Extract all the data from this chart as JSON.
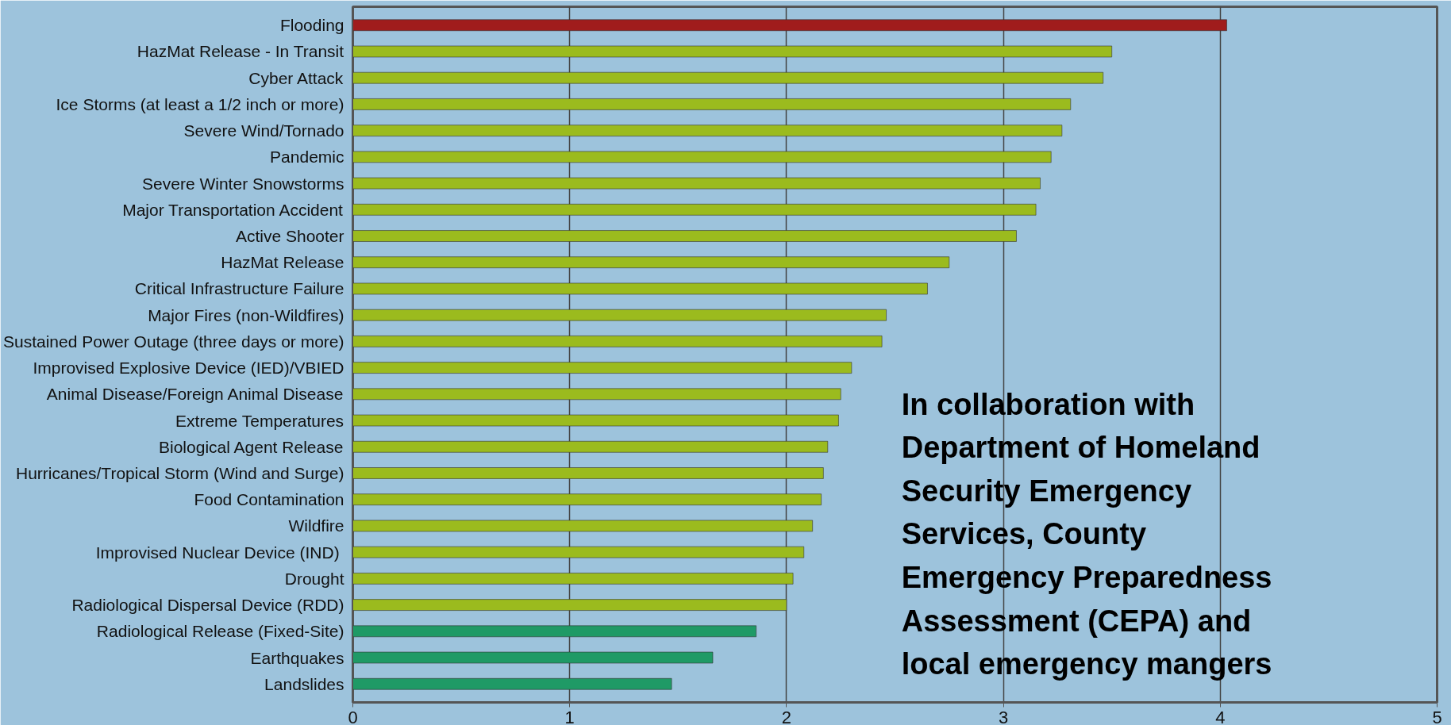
{
  "chart_data": {
    "type": "bar",
    "orientation": "horizontal",
    "categories": [
      "Flooding",
      "HazMat Release - In Transit",
      "Cyber Attack",
      "Ice Storms (at least a 1/2 inch or more)",
      "Severe Wind/Tornado",
      "Pandemic",
      "Severe Winter Snowstorms",
      "Major Transportation Accident",
      "Active Shooter",
      "HazMat Release",
      "Critical Infrastructure Failure",
      "Major Fires (non-Wildfires)",
      "Sustained Power Outage (three days or more)",
      "Improvised Explosive Device (IED)/VBIED",
      "Animal Disease/Foreign Animal Disease",
      "Extreme Temperatures",
      "Biological Agent Release",
      "Hurricanes/Tropical Storm (Wind and Surge)",
      "Food Contamination",
      "Wildfire",
      "Improvised Nuclear Device  (IND)",
      "Drought",
      "Radiological Dispersal Device (RDD)",
      "Radiological Release (Fixed-Site)",
      "Earthquakes",
      "Landslides"
    ],
    "values": [
      4.03,
      3.5,
      3.46,
      3.31,
      3.27,
      3.22,
      3.17,
      3.15,
      3.06,
      2.75,
      2.65,
      2.46,
      2.44,
      2.3,
      2.25,
      2.24,
      2.19,
      2.17,
      2.16,
      2.12,
      2.08,
      2.03,
      2.0,
      1.86,
      1.66,
      1.47
    ],
    "colors": [
      "#a01c1c",
      "#9bbb1e",
      "#9bbb1e",
      "#9bbb1e",
      "#9bbb1e",
      "#9bbb1e",
      "#9bbb1e",
      "#9bbb1e",
      "#9bbb1e",
      "#9bbb1e",
      "#9bbb1e",
      "#9bbb1e",
      "#9bbb1e",
      "#9bbb1e",
      "#9bbb1e",
      "#9bbb1e",
      "#9bbb1e",
      "#9bbb1e",
      "#9bbb1e",
      "#9bbb1e",
      "#9bbb1e",
      "#9bbb1e",
      "#9bbb1e",
      "#1f9a66",
      "#1f9a66",
      "#1f9a66"
    ],
    "xlim": [
      0,
      5
    ],
    "xticks": [
      0,
      1,
      2,
      3,
      4,
      5
    ],
    "grid": "x",
    "annotations": [
      "In collaboration with Department of Homeland Security Emergency Services, County Emergency Preparedness Assessment (CEPA) and local emergency mangers"
    ]
  }
}
